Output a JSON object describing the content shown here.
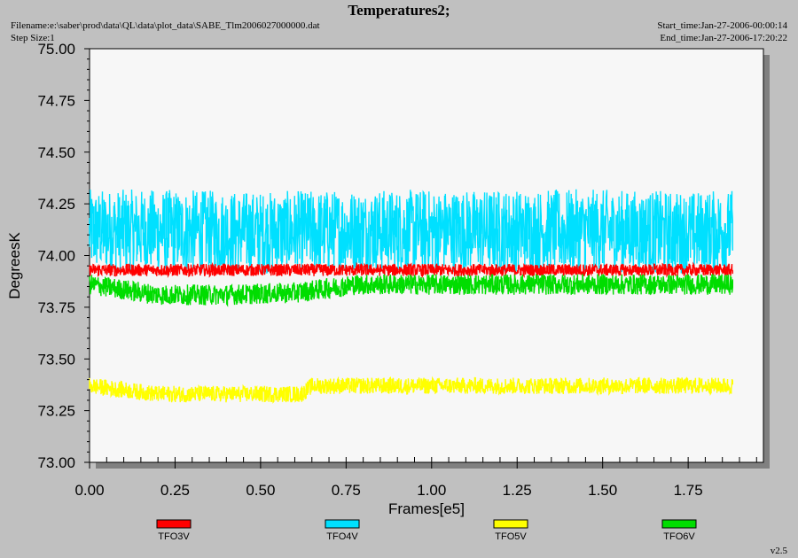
{
  "header": {
    "title": "Temperatures2;",
    "filename": "Filename:e:\\saber\\prod\\data\\QL\\data\\plot_data\\SABE_Tlm2006027000000.dat",
    "step_size": "Step Size:1",
    "start_time": "Start_time:Jan-27-2006-00:00:14",
    "end_time": "End_time:Jan-27-2006-17:20:22",
    "version": "v2.5"
  },
  "chart_data": {
    "type": "line",
    "title": "Temperatures2;",
    "xlabel": "Frames[e5]",
    "ylabel": "DegreesK",
    "xlim": [
      0.0,
      1.97
    ],
    "ylim": [
      73.0,
      75.0
    ],
    "x_ticks": [
      "0.00",
      "0.25",
      "0.50",
      "0.75",
      "1.00",
      "1.25",
      "1.50",
      "1.75"
    ],
    "y_ticks": [
      "73.00",
      "73.25",
      "73.50",
      "73.75",
      "74.00",
      "74.25",
      "74.50",
      "74.75",
      "75.00"
    ],
    "x_extent": [
      0.0,
      1.88
    ],
    "grid": false,
    "legend_position": "bottom",
    "series": [
      {
        "name": "TFO3V",
        "color": "#ff0000",
        "points": [
          [
            0.0,
            73.93
          ],
          [
            0.25,
            73.93
          ],
          [
            0.5,
            73.93
          ],
          [
            0.75,
            73.93
          ],
          [
            1.0,
            73.93
          ],
          [
            1.25,
            73.93
          ],
          [
            1.5,
            73.93
          ],
          [
            1.75,
            73.93
          ],
          [
            1.88,
            73.93
          ]
        ],
        "noise": 0.03
      },
      {
        "name": "TFO4V",
        "color": "#00e0ff",
        "points": [
          [
            0.0,
            74.12
          ],
          [
            0.25,
            74.12
          ],
          [
            0.5,
            74.11
          ],
          [
            0.75,
            74.12
          ],
          [
            1.0,
            74.12
          ],
          [
            1.25,
            74.12
          ],
          [
            1.5,
            74.12
          ],
          [
            1.75,
            74.11
          ],
          [
            1.88,
            74.12
          ]
        ],
        "noise": 0.2
      },
      {
        "name": "TFO5V",
        "color": "#ffff00",
        "points": [
          [
            0.0,
            73.37
          ],
          [
            0.2,
            73.33
          ],
          [
            0.4,
            73.33
          ],
          [
            0.62,
            73.33
          ],
          [
            0.65,
            73.37
          ],
          [
            1.0,
            73.37
          ],
          [
            1.25,
            73.37
          ],
          [
            1.5,
            73.37
          ],
          [
            1.88,
            73.37
          ]
        ],
        "noise": 0.04
      },
      {
        "name": "TFO6V",
        "color": "#00dd00",
        "points": [
          [
            0.0,
            73.86
          ],
          [
            0.2,
            73.81
          ],
          [
            0.4,
            73.81
          ],
          [
            0.6,
            73.82
          ],
          [
            0.78,
            73.86
          ],
          [
            1.0,
            73.86
          ],
          [
            1.25,
            73.86
          ],
          [
            1.5,
            73.86
          ],
          [
            1.88,
            73.86
          ]
        ],
        "noise": 0.05
      }
    ]
  }
}
